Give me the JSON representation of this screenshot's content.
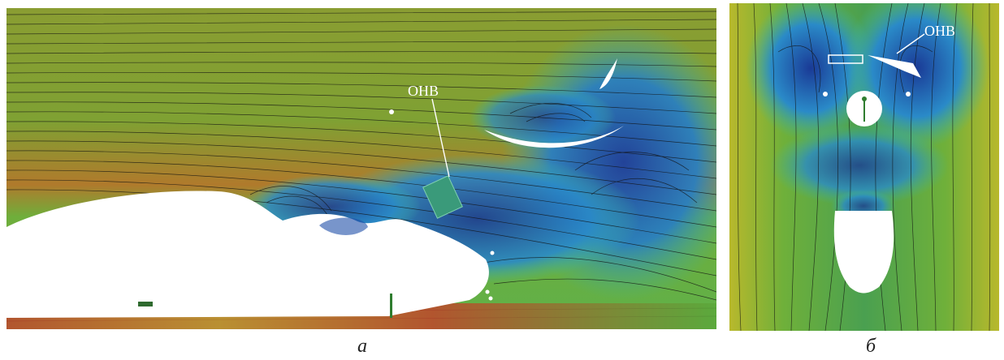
{
  "figure": {
    "panels": [
      {
        "id": "a",
        "caption": "а",
        "label": "ОНВ"
      },
      {
        "id": "b",
        "caption": "б",
        "label": "ОНВ"
      }
    ],
    "colors": {
      "flow_green": "#5aa83a",
      "flow_yellow": "#c9c22f",
      "flow_red": "#c0452a",
      "wake_blue": "#1e4fa8",
      "body_white": "#ffffff",
      "streamline": "#111111"
    }
  }
}
